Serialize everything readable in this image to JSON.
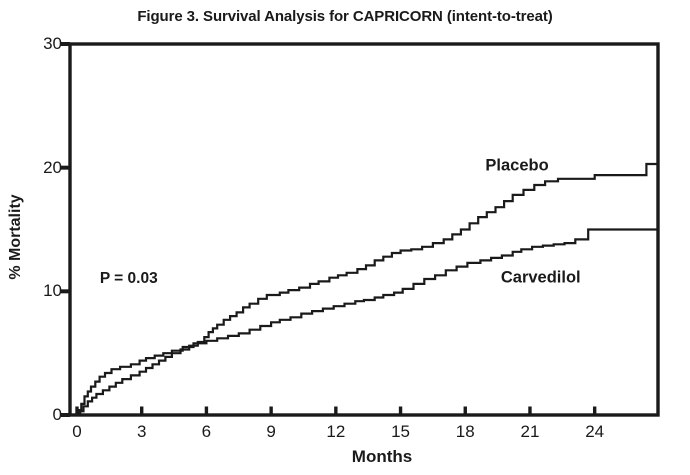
{
  "chart_data": {
    "type": "line",
    "variant": "kaplan-meier-step",
    "title": "Figure 3. Survival Analysis for CAPRICORN (intent-to-treat)",
    "xlabel": "Months",
    "ylabel": "% Mortality",
    "xlim": [
      0,
      26.9
    ],
    "ylim": [
      0,
      30
    ],
    "x_ticks": [
      0,
      3,
      6,
      9,
      12,
      15,
      18,
      21,
      24
    ],
    "y_ticks": [
      0,
      10,
      20,
      30
    ],
    "grid": false,
    "frame": "full-box",
    "line_color": "#1a1a1a",
    "background_color": "#ffffff",
    "legend_position": "inline-labels",
    "annotation": {
      "text": "P = 0.03",
      "x": 2.4,
      "y": 11.0
    },
    "series": [
      {
        "name": "Placebo",
        "label": {
          "text": "Placebo",
          "x": 20.4,
          "y": 20.1
        },
        "points": [
          [
            0,
            0
          ],
          [
            0.15,
            0.3
          ],
          [
            0.3,
            0.7
          ],
          [
            0.5,
            1.1
          ],
          [
            0.7,
            1.4
          ],
          [
            0.9,
            1.7
          ],
          [
            1.2,
            2.0
          ],
          [
            1.5,
            2.3
          ],
          [
            1.8,
            2.6
          ],
          [
            2.1,
            2.9
          ],
          [
            2.5,
            3.2
          ],
          [
            2.9,
            3.5
          ],
          [
            3.2,
            3.8
          ],
          [
            3.5,
            4.1
          ],
          [
            3.8,
            4.4
          ],
          [
            4.1,
            4.7
          ],
          [
            4.4,
            5.0
          ],
          [
            4.8,
            5.3
          ],
          [
            5.2,
            5.6
          ],
          [
            5.6,
            5.9
          ],
          [
            5.9,
            6.3
          ],
          [
            6.1,
            6.7
          ],
          [
            6.3,
            7.0
          ],
          [
            6.5,
            7.3
          ],
          [
            6.8,
            7.7
          ],
          [
            7.1,
            8.0
          ],
          [
            7.4,
            8.3
          ],
          [
            7.7,
            8.7
          ],
          [
            8.0,
            9.0
          ],
          [
            8.4,
            9.4
          ],
          [
            8.8,
            9.7
          ],
          [
            9.4,
            9.9
          ],
          [
            9.8,
            10.1
          ],
          [
            10.3,
            10.3
          ],
          [
            10.8,
            10.6
          ],
          [
            11.2,
            10.8
          ],
          [
            11.7,
            11.1
          ],
          [
            12.1,
            11.3
          ],
          [
            12.5,
            11.5
          ],
          [
            13.0,
            11.8
          ],
          [
            13.4,
            12.1
          ],
          [
            13.8,
            12.5
          ],
          [
            14.2,
            12.8
          ],
          [
            14.6,
            13.1
          ],
          [
            15.0,
            13.3
          ],
          [
            15.5,
            13.4
          ],
          [
            16.0,
            13.6
          ],
          [
            16.5,
            13.9
          ],
          [
            17.0,
            14.2
          ],
          [
            17.4,
            14.6
          ],
          [
            17.8,
            15.0
          ],
          [
            18.2,
            15.5
          ],
          [
            18.6,
            16.0
          ],
          [
            19.0,
            16.4
          ],
          [
            19.4,
            16.8
          ],
          [
            19.8,
            17.3
          ],
          [
            20.2,
            17.8
          ],
          [
            20.7,
            18.2
          ],
          [
            21.2,
            18.6
          ],
          [
            21.7,
            18.9
          ],
          [
            22.3,
            19.1
          ],
          [
            24.0,
            19.4
          ],
          [
            26.4,
            20.3
          ],
          [
            26.9,
            20.3
          ]
        ]
      },
      {
        "name": "Carvedilol",
        "label": {
          "text": "Carvedilol",
          "x": 21.5,
          "y": 11.1
        },
        "points": [
          [
            0,
            0
          ],
          [
            0.1,
            0.4
          ],
          [
            0.2,
            0.9
          ],
          [
            0.35,
            1.5
          ],
          [
            0.5,
            1.9
          ],
          [
            0.65,
            2.3
          ],
          [
            0.85,
            2.7
          ],
          [
            1.05,
            3.1
          ],
          [
            1.3,
            3.4
          ],
          [
            1.6,
            3.7
          ],
          [
            2.0,
            3.9
          ],
          [
            2.5,
            4.1
          ],
          [
            2.9,
            4.4
          ],
          [
            3.2,
            4.6
          ],
          [
            3.6,
            4.8
          ],
          [
            4.0,
            5.0
          ],
          [
            4.4,
            5.2
          ],
          [
            4.9,
            5.5
          ],
          [
            5.4,
            5.8
          ],
          [
            6.0,
            6.0
          ],
          [
            6.5,
            6.2
          ],
          [
            7.0,
            6.4
          ],
          [
            7.5,
            6.6
          ],
          [
            8.0,
            6.9
          ],
          [
            8.5,
            7.2
          ],
          [
            9.0,
            7.5
          ],
          [
            9.4,
            7.7
          ],
          [
            9.9,
            7.9
          ],
          [
            10.4,
            8.2
          ],
          [
            10.9,
            8.4
          ],
          [
            11.4,
            8.6
          ],
          [
            11.9,
            8.8
          ],
          [
            12.4,
            9.0
          ],
          [
            12.9,
            9.2
          ],
          [
            13.3,
            9.3
          ],
          [
            13.8,
            9.5
          ],
          [
            14.2,
            9.7
          ],
          [
            14.7,
            9.9
          ],
          [
            15.1,
            10.2
          ],
          [
            15.6,
            10.6
          ],
          [
            16.1,
            11.0
          ],
          [
            16.6,
            11.3
          ],
          [
            17.1,
            11.7
          ],
          [
            17.6,
            12.0
          ],
          [
            18.1,
            12.3
          ],
          [
            18.7,
            12.5
          ],
          [
            19.2,
            12.7
          ],
          [
            19.7,
            12.9
          ],
          [
            20.2,
            13.2
          ],
          [
            20.6,
            13.4
          ],
          [
            21.1,
            13.6
          ],
          [
            21.6,
            13.7
          ],
          [
            22.1,
            13.8
          ],
          [
            22.6,
            13.9
          ],
          [
            23.1,
            14.2
          ],
          [
            23.7,
            15.0
          ],
          [
            26.9,
            15.0
          ]
        ]
      }
    ]
  }
}
